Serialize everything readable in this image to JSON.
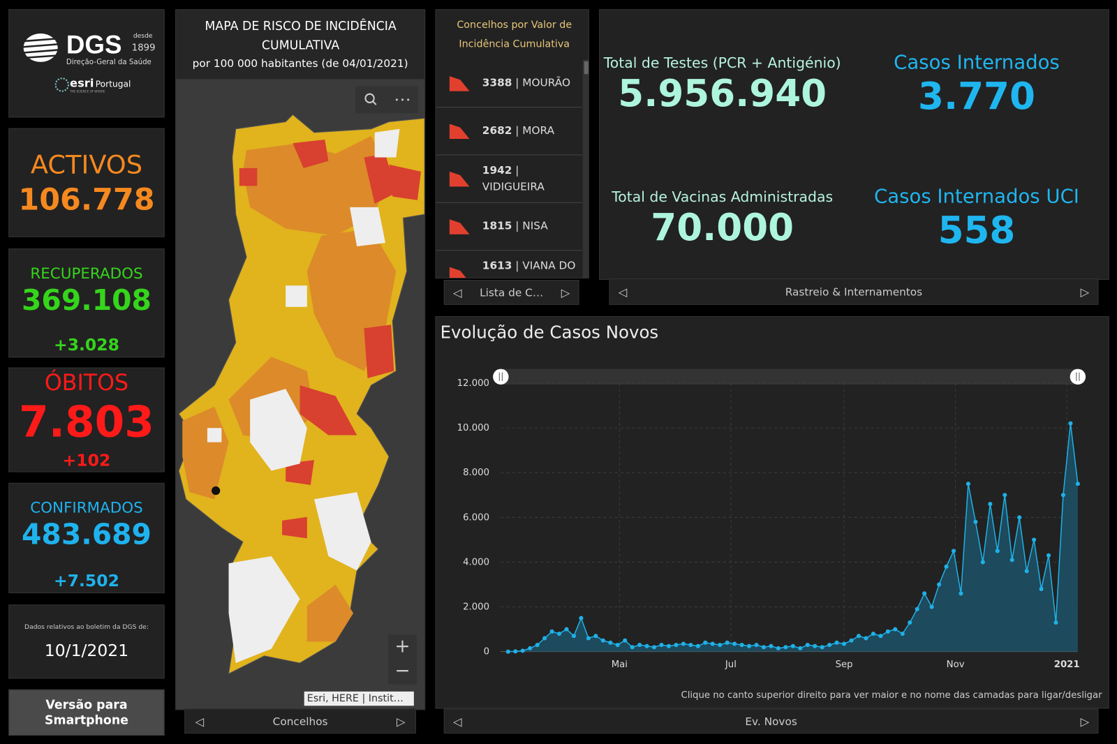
{
  "header": {
    "logo": "DGS",
    "since": "desde",
    "year": "1899",
    "org": "Direção-Geral da Saúde",
    "partner": "esri",
    "partner_region": "Portugal",
    "partner_tagline": "THE SCIENCE OF WHERE"
  },
  "indicators": [
    {
      "label": "ACTIVOS",
      "value": "106.778"
    },
    {
      "label": "RECUPERADOS",
      "value": "369.108",
      "change": "+3.028"
    },
    {
      "label": "ÓBITOS",
      "value": "7.803",
      "change": "+102"
    },
    {
      "label": "CONFIRMADOS",
      "value": "483.689",
      "change": "+7.502"
    }
  ],
  "report": {
    "note": "Dados relativos ao boletim da DGS de:",
    "date": "10/1/2021"
  },
  "smartphone_button": "Versão para Smartphone",
  "map": {
    "title": "MAPA DE RISCO DE INCIDÊNCIA CUMULATIVA",
    "subtitle": "por 100 000 habitantes (de 04/01/2021)",
    "attribution": "Esri, HERE | Instit…",
    "tab": "Concelhos"
  },
  "ranking": {
    "title": "Concelhos por Valor de Incidência Cumulativa",
    "items": [
      {
        "value": "3388",
        "name": "MOURÃO"
      },
      {
        "value": "2682",
        "name": "MORA"
      },
      {
        "value": "1942",
        "name": "VIDIGUEIRA"
      },
      {
        "value": "1815",
        "name": "NISA"
      },
      {
        "value": "1613",
        "name": "VIANA DO ALENTEJO"
      }
    ],
    "tab": "Lista de C…"
  },
  "stats": {
    "items": [
      {
        "label": "Total de Testes (PCR + Antigénio)",
        "value": "5.956.940"
      },
      {
        "label": "Casos Internados",
        "value": "3.770"
      },
      {
        "label": "Total de Vacinas Administradas",
        "value": "70.000"
      },
      {
        "label": "Casos Internados UCI",
        "value": "558"
      }
    ],
    "tab": "Rastreio & Internamentos"
  },
  "chart_panel": {
    "note": "Clique no canto superior direito para ver maior e no nome das camadas para ligar/desligar",
    "tab": "Ev. Novos"
  },
  "chart_data": {
    "type": "line",
    "title": "Evolução de Casos Novos",
    "color": "#1fb0e6",
    "area": true,
    "area_color": "#1d4f63",
    "grid": true,
    "xlim": [
      -4,
      312
    ],
    "xticks": [
      {
        "value": 61,
        "label": "Mai"
      },
      {
        "value": 122,
        "label": "Jul"
      },
      {
        "value": 184,
        "label": "Sep"
      },
      {
        "value": 245,
        "label": "Nov"
      },
      {
        "value": 306,
        "label": "2021"
      }
    ],
    "ylim": [
      0,
      12000
    ],
    "yticks": [
      0,
      {
        "value": 2000,
        "label": "2.000"
      },
      {
        "value": 4000,
        "label": "4.000"
      },
      {
        "value": 6000,
        "label": "6.000"
      },
      {
        "value": 8000,
        "label": "8.000"
      },
      {
        "value": 10000,
        "label": "10.000"
      },
      {
        "value": 12000,
        "label": "12.000"
      }
    ],
    "x": [
      0,
      4,
      8,
      12,
      16,
      20,
      24,
      28,
      32,
      36,
      40,
      44,
      48,
      52,
      56,
      60,
      64,
      68,
      72,
      76,
      80,
      84,
      88,
      92,
      96,
      100,
      104,
      108,
      112,
      116,
      120,
      124,
      128,
      132,
      136,
      140,
      144,
      148,
      152,
      156,
      160,
      164,
      168,
      172,
      176,
      180,
      184,
      188,
      192,
      196,
      200,
      204,
      208,
      212,
      216,
      220,
      224,
      228,
      232,
      236,
      240,
      244,
      248,
      252,
      256,
      260,
      264,
      268,
      272,
      276,
      280,
      284,
      288,
      292,
      296,
      300,
      304,
      308,
      312
    ],
    "values": [
      0,
      10,
      40,
      150,
      300,
      600,
      900,
      800,
      1000,
      700,
      1500,
      600,
      700,
      500,
      400,
      300,
      500,
      200,
      300,
      250,
      200,
      300,
      250,
      300,
      350,
      300,
      250,
      400,
      350,
      300,
      400,
      350,
      300,
      250,
      300,
      200,
      250,
      150,
      200,
      250,
      150,
      300,
      250,
      200,
      300,
      400,
      350,
      500,
      700,
      600,
      800,
      700,
      900,
      1000,
      800,
      1300,
      1900,
      2600,
      2000,
      3000,
      3800,
      4500,
      2600,
      7500,
      5800,
      4000,
      6600,
      4500,
      7000,
      4100,
      6000,
      3600,
      5000,
      2800,
      4300,
      1300,
      7000,
      10200,
      7500
    ]
  }
}
